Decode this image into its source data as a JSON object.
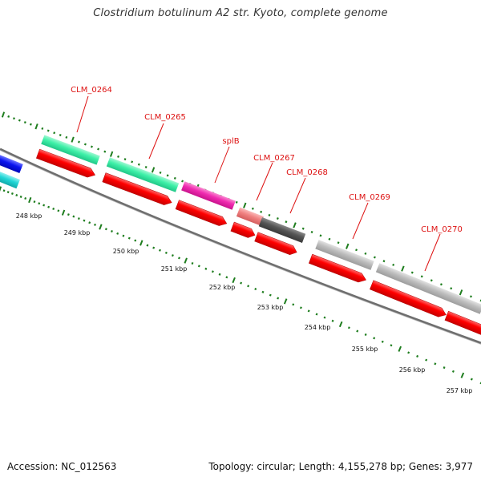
{
  "title": "Clostridium botulinum A2 str. Kyoto, complete genome",
  "footer": {
    "accession": "Accession: NC_012563",
    "summary": "Topology: circular; Length: 4,155,278 bp; Genes: 3,977"
  },
  "scale": {
    "unit": "kbp",
    "ticks": [
      "248 kbp",
      "249 kbp",
      "250 kbp",
      "251 kbp",
      "252 kbp",
      "253 kbp",
      "254 kbp",
      "255 kbp",
      "256 kbp",
      "257 kbp"
    ]
  },
  "gene_labels": [
    "CLM_0264",
    "CLM_0265",
    "splB",
    "CLM_0267",
    "CLM_0268",
    "CLM_0269",
    "CLM_0270"
  ],
  "colors": {
    "label_red": "#dd1111",
    "cds_red": "#ff0000",
    "tick_green": "#1e7d1e",
    "backbone": "#777777",
    "seafoam": "#3ef0a8",
    "magenta": "#f02ab0",
    "salmon": "#f08080",
    "dark_gray": "#555555",
    "light_gray": "#bcbcbc",
    "blue": "#0a14f0",
    "cyan": "#20d6d6"
  }
}
